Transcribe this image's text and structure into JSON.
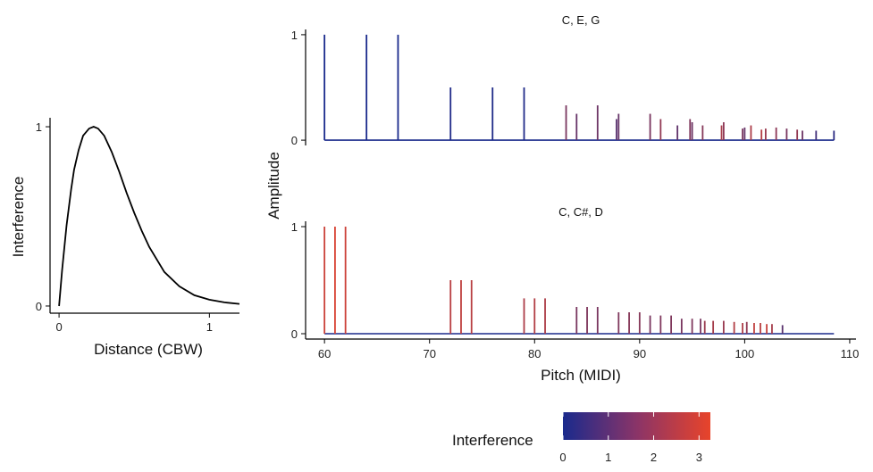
{
  "chart_data": [
    {
      "type": "line",
      "xlabel": "Distance (CBW)",
      "ylabel": "Interference",
      "xlim": [
        -0.06,
        1.2
      ],
      "ylim": [
        -0.04,
        1.05
      ],
      "xticks": [
        0,
        1
      ],
      "yticks": [
        0,
        1
      ],
      "series": [
        {
          "x": [
            0,
            0.02,
            0.05,
            0.08,
            0.1,
            0.13,
            0.16,
            0.2,
            0.23,
            0.26,
            0.3,
            0.35,
            0.4,
            0.45,
            0.5,
            0.55,
            0.6,
            0.7,
            0.8,
            0.9,
            1.0,
            1.1,
            1.2
          ],
          "y": [
            0,
            0.2,
            0.45,
            0.65,
            0.76,
            0.87,
            0.95,
            0.99,
            1.0,
            0.99,
            0.95,
            0.86,
            0.75,
            0.63,
            0.52,
            0.42,
            0.33,
            0.19,
            0.11,
            0.06,
            0.035,
            0.02,
            0.012
          ]
        }
      ]
    },
    {
      "type": "bar",
      "title": "C, E, G",
      "ylabel": "Amplitude",
      "xlim": [
        58.2,
        110.6
      ],
      "ylim": [
        -0.05,
        1.05
      ],
      "yticks": [
        0,
        1
      ],
      "baseline": [
        60,
        108.5
      ],
      "stems": [
        {
          "x": 60,
          "y": 1,
          "interference": 0
        },
        {
          "x": 64,
          "y": 1,
          "interference": 0
        },
        {
          "x": 67,
          "y": 1,
          "interference": 0
        },
        {
          "x": 72,
          "y": 0.5,
          "interference": 0.1
        },
        {
          "x": 76,
          "y": 0.5,
          "interference": 0.1
        },
        {
          "x": 79,
          "y": 0.5,
          "interference": 0.1
        },
        {
          "x": 83,
          "y": 0.33,
          "interference": 1.5
        },
        {
          "x": 84,
          "y": 0.25,
          "interference": 1.2
        },
        {
          "x": 86,
          "y": 0.33,
          "interference": 1.3
        },
        {
          "x": 87.8,
          "y": 0.2,
          "interference": 1.0
        },
        {
          "x": 88,
          "y": 0.25,
          "interference": 1.2
        },
        {
          "x": 91,
          "y": 0.25,
          "interference": 1.5
        },
        {
          "x": 92,
          "y": 0.2,
          "interference": 1.9
        },
        {
          "x": 93.6,
          "y": 0.14,
          "interference": 1.1
        },
        {
          "x": 94.8,
          "y": 0.2,
          "interference": 1.6
        },
        {
          "x": 95,
          "y": 0.17,
          "interference": 1.3
        },
        {
          "x": 96,
          "y": 0.14,
          "interference": 1.7
        },
        {
          "x": 97.8,
          "y": 0.14,
          "interference": 2.2
        },
        {
          "x": 98,
          "y": 0.17,
          "interference": 1.8
        },
        {
          "x": 99.8,
          "y": 0.11,
          "interference": 1.5
        },
        {
          "x": 100,
          "y": 0.12,
          "interference": 1.2
        },
        {
          "x": 100.6,
          "y": 0.14,
          "interference": 2.3
        },
        {
          "x": 101.6,
          "y": 0.1,
          "interference": 2.4
        },
        {
          "x": 102,
          "y": 0.11,
          "interference": 2.0
        },
        {
          "x": 103,
          "y": 0.12,
          "interference": 1.8
        },
        {
          "x": 104,
          "y": 0.11,
          "interference": 1.5
        },
        {
          "x": 105,
          "y": 0.1,
          "interference": 1.9
        },
        {
          "x": 105.5,
          "y": 0.09,
          "interference": 1.3
        },
        {
          "x": 106.8,
          "y": 0.09,
          "interference": 0.6
        },
        {
          "x": 108.5,
          "y": 0.09,
          "interference": 0.3
        }
      ]
    },
    {
      "type": "bar",
      "title": "C, C#, D",
      "xlabel": "Pitch (MIDI)",
      "ylabel": "Amplitude",
      "xlim": [
        58.2,
        110.6
      ],
      "ylim": [
        -0.05,
        1.05
      ],
      "xticks": [
        60,
        70,
        80,
        90,
        100,
        110
      ],
      "yticks": [
        0,
        1
      ],
      "baseline": [
        60,
        108.5
      ],
      "stems": [
        {
          "x": 60,
          "y": 1,
          "interference": 2.8
        },
        {
          "x": 61,
          "y": 1,
          "interference": 3.0
        },
        {
          "x": 62,
          "y": 1,
          "interference": 2.8
        },
        {
          "x": 72,
          "y": 0.5,
          "interference": 2.5
        },
        {
          "x": 73,
          "y": 0.5,
          "interference": 2.6
        },
        {
          "x": 74,
          "y": 0.5,
          "interference": 2.5
        },
        {
          "x": 79,
          "y": 0.33,
          "interference": 2.3
        },
        {
          "x": 80,
          "y": 0.33,
          "interference": 2.4
        },
        {
          "x": 81,
          "y": 0.33,
          "interference": 2.3
        },
        {
          "x": 84,
          "y": 0.25,
          "interference": 1.5
        },
        {
          "x": 85,
          "y": 0.25,
          "interference": 1.6
        },
        {
          "x": 86,
          "y": 0.25,
          "interference": 1.5
        },
        {
          "x": 88,
          "y": 0.2,
          "interference": 1.6
        },
        {
          "x": 89,
          "y": 0.2,
          "interference": 1.7
        },
        {
          "x": 90,
          "y": 0.2,
          "interference": 1.7
        },
        {
          "x": 91,
          "y": 0.17,
          "interference": 1.5
        },
        {
          "x": 92,
          "y": 0.17,
          "interference": 1.6
        },
        {
          "x": 93,
          "y": 0.17,
          "interference": 1.6
        },
        {
          "x": 94,
          "y": 0.14,
          "interference": 1.5
        },
        {
          "x": 95,
          "y": 0.14,
          "interference": 1.6
        },
        {
          "x": 95.8,
          "y": 0.14,
          "interference": 1.5
        },
        {
          "x": 96.2,
          "y": 0.12,
          "interference": 2.0
        },
        {
          "x": 97,
          "y": 0.12,
          "interference": 2.2
        },
        {
          "x": 98,
          "y": 0.12,
          "interference": 2.0
        },
        {
          "x": 99,
          "y": 0.11,
          "interference": 2.4
        },
        {
          "x": 99.8,
          "y": 0.1,
          "interference": 2.3
        },
        {
          "x": 100.2,
          "y": 0.11,
          "interference": 1.9
        },
        {
          "x": 100.9,
          "y": 0.1,
          "interference": 2.6
        },
        {
          "x": 101.5,
          "y": 0.1,
          "interference": 2.5
        },
        {
          "x": 102.1,
          "y": 0.09,
          "interference": 2.7
        },
        {
          "x": 102.6,
          "y": 0.09,
          "interference": 2.2
        },
        {
          "x": 103.6,
          "y": 0.08,
          "interference": 1.0
        }
      ]
    }
  ],
  "legend": {
    "title": "Interference",
    "range": [
      0,
      3.25
    ],
    "ticks": [
      0,
      1,
      2,
      3
    ],
    "colors": [
      "#1a2a8c",
      "#e8442a"
    ]
  }
}
